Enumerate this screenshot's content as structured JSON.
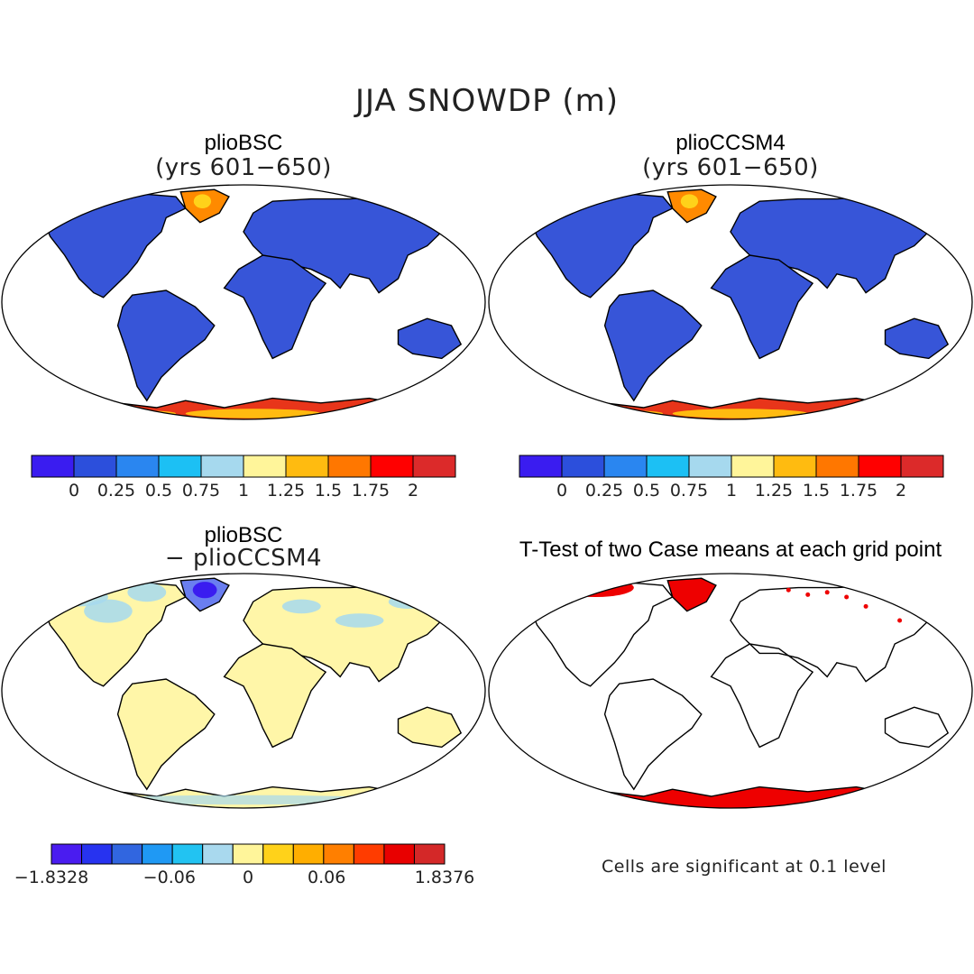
{
  "figure": {
    "title": "JJA SNOWDP (m)",
    "panels": [
      {
        "title": "plioBSC",
        "subtitle": "(yrs 601−650)"
      },
      {
        "title": "plioCCSM4",
        "subtitle": "(yrs 601−650)"
      },
      {
        "title": "plioBSC",
        "subtitle": "− plioCCSM4"
      },
      {
        "title": "T-Test of two Case means at each grid point",
        "subtitle": ""
      }
    ],
    "note": "Cells are significant at 0.1 level"
  },
  "colors": {
    "land_snow_free": "#3755d8",
    "diff_neutral": "#fff6a8",
    "significant": "#ee0000",
    "colorbar_main": [
      "#3a1cf0",
      "#2c4fdc",
      "#2a86f0",
      "#1cc0f4",
      "#a6d9ee",
      "#fff59a",
      "#ffbb10",
      "#ff7700",
      "#ff0000",
      "#dc2a2a"
    ],
    "colorbar_diff": [
      "#4a1cf0",
      "#2733f0",
      "#3166e0",
      "#1f99f4",
      "#22c3f2",
      "#a9d9ee",
      "#fff59a",
      "#ffd21a",
      "#ffae00",
      "#ff7f00",
      "#ff3c00",
      "#e80000",
      "#d42828"
    ]
  },
  "chart_data": [
    {
      "type": "heatmap",
      "title": "plioBSC (yrs 601−650)",
      "variable": "JJA SNOWDP",
      "units": "m",
      "colorbar_levels": [
        "0",
        "0.25",
        "0.5",
        "0.75",
        "1",
        "1.25",
        "1.5",
        "1.75",
        "2"
      ],
      "projection": "Robinson (global)"
    },
    {
      "type": "heatmap",
      "title": "plioCCSM4 (yrs 601−650)",
      "variable": "JJA SNOWDP",
      "units": "m",
      "colorbar_levels": [
        "0",
        "0.25",
        "0.5",
        "0.75",
        "1",
        "1.25",
        "1.5",
        "1.75",
        "2"
      ],
      "projection": "Robinson (global)"
    },
    {
      "type": "heatmap",
      "title": "plioBSC − plioCCSM4",
      "variable": "JJA SNOWDP difference",
      "units": "m",
      "colorbar_labels": [
        "−1.8328",
        "−0.06",
        "0",
        "0.06",
        "1.8376"
      ],
      "projection": "Robinson (global)"
    },
    {
      "type": "heatmap",
      "title": "T-Test of two Case means at each grid point",
      "significance_level": 0.1,
      "projection": "Robinson (global)"
    }
  ]
}
